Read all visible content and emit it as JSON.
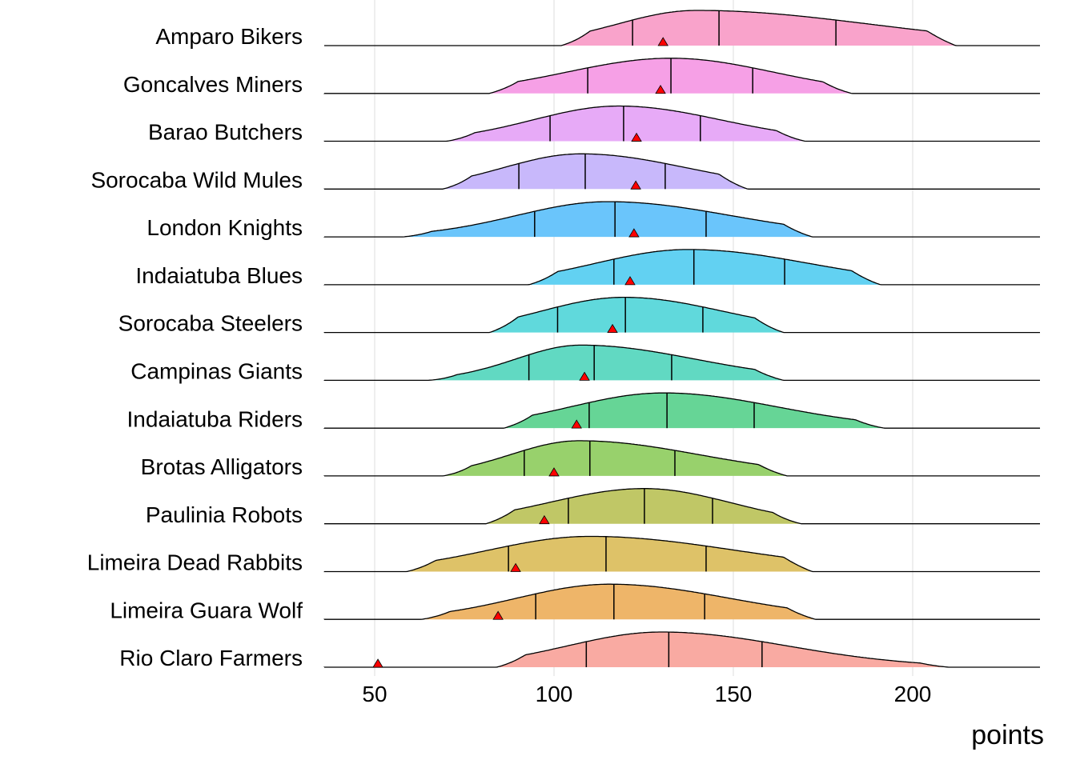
{
  "chart_data": {
    "type": "ridgeline",
    "title": "",
    "xlabel": "points",
    "ylabel": "",
    "xlim": [
      36,
      236
    ],
    "xticks": [
      50,
      100,
      150,
      200
    ],
    "grid": "vertical major",
    "legend": "none",
    "marker_note": "red triangle per team",
    "series": [
      {
        "name": "Amparo Bikers",
        "color": "#F9A3CB",
        "min": 106,
        "max": 208,
        "q25": 121.9,
        "median": 146,
        "q75": 178.6,
        "peak": 139.7,
        "marker": 130.4
      },
      {
        "name": "Goncalves Miners",
        "color": "#F6A0E6",
        "min": 86,
        "max": 179,
        "q25": 109.4,
        "median": 132.6,
        "q75": 155.4,
        "peak": 132.6,
        "marker": 129.7
      },
      {
        "name": "Barao Butchers",
        "color": "#E7AAF7",
        "min": 74,
        "max": 166,
        "q25": 98.9,
        "median": 119.4,
        "q75": 140.8,
        "peak": 118,
        "marker": 123
      },
      {
        "name": "Sorocaba Wild Mules",
        "color": "#C8B8FB",
        "min": 73,
        "max": 150,
        "q25": 90.2,
        "median": 108.7,
        "q75": 131,
        "peak": 107.5,
        "marker": 122.8
      },
      {
        "name": "London Knights",
        "color": "#6AC5FB",
        "min": 62,
        "max": 168,
        "q25": 94.6,
        "median": 117,
        "q75": 142.4,
        "peak": 115,
        "marker": 122.3
      },
      {
        "name": "Indaiatuba Blues",
        "color": "#62D1F2",
        "min": 97,
        "max": 187,
        "q25": 116.7,
        "median": 139,
        "q75": 164.3,
        "peak": 137.5,
        "marker": 121.2
      },
      {
        "name": "Sorocaba Steelers",
        "color": "#60D9DC",
        "min": 86,
        "max": 160,
        "q25": 101,
        "median": 119.9,
        "q75": 141.5,
        "peak": 119.5,
        "marker": 116.3
      },
      {
        "name": "Campinas Giants",
        "color": "#61D9C2",
        "min": 69,
        "max": 160,
        "q25": 93,
        "median": 111.2,
        "q75": 132.8,
        "peak": 107.5,
        "marker": 108.5
      },
      {
        "name": "Indaiatuba Riders",
        "color": "#66D596",
        "min": 90,
        "max": 188,
        "q25": 109.8,
        "median": 131.5,
        "q75": 155.8,
        "peak": 130.5,
        "marker": 106.3
      },
      {
        "name": "Brotas Alligators",
        "color": "#98D16C",
        "min": 73,
        "max": 161,
        "q25": 91.7,
        "median": 110,
        "q75": 133.7,
        "peak": 107,
        "marker": 100
      },
      {
        "name": "Paulinia Robots",
        "color": "#C0C766",
        "min": 85,
        "max": 165,
        "q25": 104,
        "median": 125.2,
        "q75": 144.2,
        "peak": 125.2,
        "marker": 97.3
      },
      {
        "name": "Limeira Dead Rabbits",
        "color": "#DEC268",
        "min": 63,
        "max": 168,
        "q25": 87.3,
        "median": 114.5,
        "q75": 142.4,
        "peak": 110,
        "marker": 89.3
      },
      {
        "name": "Limeira Guara Wolf",
        "color": "#EEB569",
        "min": 67,
        "max": 169,
        "q25": 94.9,
        "median": 116.7,
        "q75": 142,
        "peak": 115.5,
        "marker": 84.4
      },
      {
        "name": "Rio Claro Farmers",
        "color": "#F9AAA2",
        "min": 88,
        "max": 206,
        "q25": 109,
        "median": 132,
        "q75": 158,
        "peak": 130,
        "marker": 50.9
      }
    ]
  }
}
